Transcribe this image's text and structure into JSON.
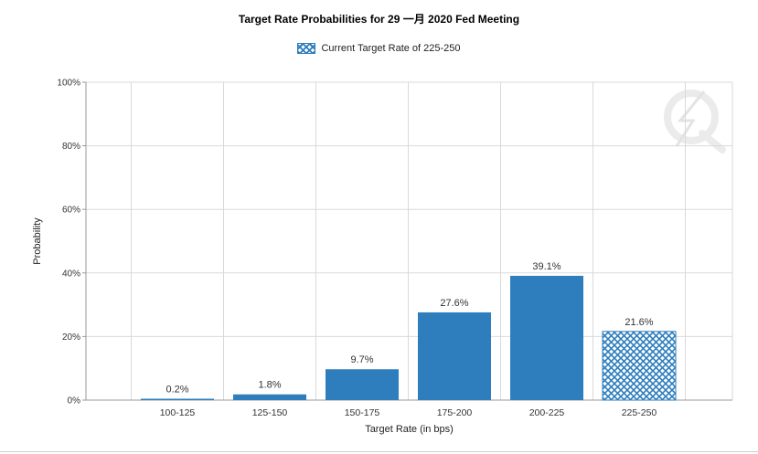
{
  "chart_data": {
    "type": "bar",
    "title": "Target Rate Probabilities for 29 一月 2020  Fed Meeting",
    "xlabel": "Target Rate (in bps)",
    "ylabel": "Probability",
    "categories": [
      "100-125",
      "125-150",
      "150-175",
      "175-200",
      "200-225",
      "225-250"
    ],
    "values": [
      0.2,
      1.8,
      9.7,
      27.6,
      39.1,
      21.6
    ],
    "data_labels": [
      "0.2%",
      "1.8%",
      "9.7%",
      "27.6%",
      "39.1%",
      "21.6%"
    ],
    "current_index": 5,
    "ylim": [
      0,
      100
    ],
    "yticks": [
      0,
      20,
      40,
      60,
      80,
      100
    ],
    "ytick_labels": [
      "0%",
      "20%",
      "40%",
      "60%",
      "80%",
      "100%"
    ],
    "grid": true,
    "legend": {
      "placement": "top-center",
      "label": "Current Target Rate of 225-250"
    },
    "colors": {
      "bar": "#2e7ebd",
      "grid": "#d9d9d9",
      "axis": "#999999"
    }
  }
}
